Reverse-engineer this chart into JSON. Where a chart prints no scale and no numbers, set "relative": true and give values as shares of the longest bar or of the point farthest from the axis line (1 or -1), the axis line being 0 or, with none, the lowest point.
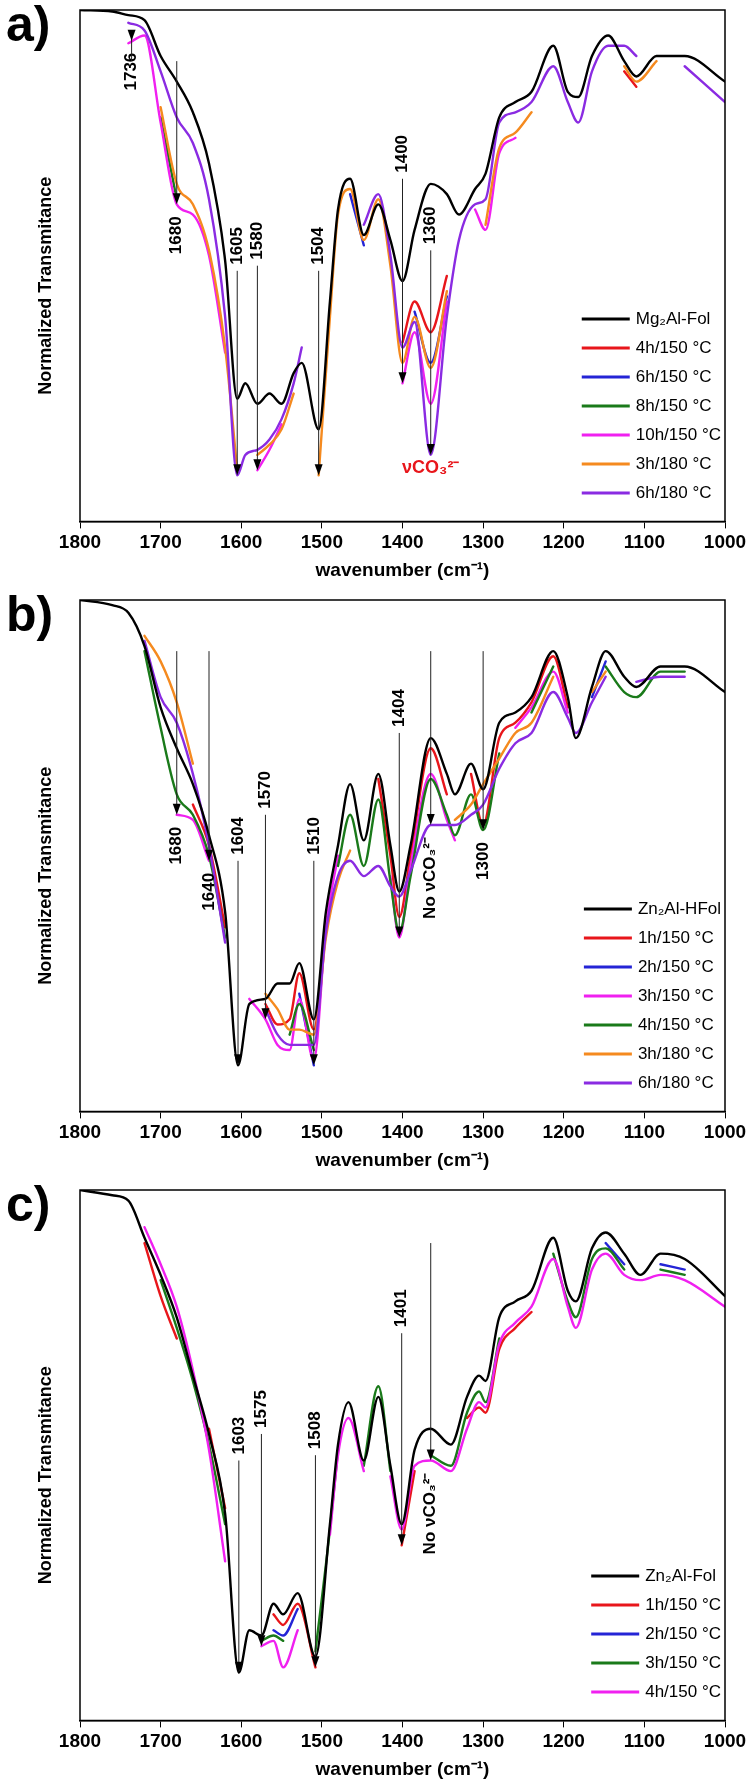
{
  "chart_data": [
    {
      "type": "line",
      "title": "a)",
      "xlabel": "wavenumber (cm⁻¹)",
      "ylabel": "Normalized Transmitance",
      "relative": true,
      "legend": "bottom right",
      "line_style": "solid",
      "xlim": [
        1800,
        1000
      ],
      "xticks": [
        1800,
        1700,
        1600,
        1500,
        1400,
        1300,
        1200,
        1100,
        1000
      ],
      "x": [
        1800,
        1760,
        1740,
        1720,
        1700,
        1680,
        1660,
        1640,
        1620,
        1605,
        1595,
        1580,
        1565,
        1550,
        1535,
        1525,
        1504,
        1490,
        1480,
        1465,
        1448,
        1430,
        1415,
        1400,
        1385,
        1365,
        1345,
        1330,
        1310,
        1297,
        1280,
        1260,
        1240,
        1213,
        1195,
        1182,
        1165,
        1145,
        1125,
        1110,
        1085,
        1050,
        1000
      ],
      "series": [
        {
          "name": "Mg₂Al-Fol",
          "color": "#000000",
          "values": [
            1.0,
            0.997,
            0.99,
            0.98,
            0.91,
            0.86,
            0.8,
            0.7,
            0.51,
            0.24,
            0.27,
            0.23,
            0.25,
            0.23,
            0.29,
            0.31,
            0.18,
            0.43,
            0.61,
            0.67,
            0.56,
            0.62,
            0.55,
            0.47,
            0.57,
            0.66,
            0.64,
            0.6,
            0.65,
            0.68,
            0.79,
            0.82,
            0.84,
            0.93,
            0.84,
            0.83,
            0.91,
            0.95,
            0.9,
            0.87,
            0.91,
            0.91,
            0.86
          ]
        },
        {
          "name": "4h/150 °C",
          "color": "#e8161b",
          "values": [
            null,
            null,
            null,
            null,
            null,
            null,
            null,
            null,
            null,
            null,
            null,
            null,
            null,
            null,
            null,
            null,
            null,
            null,
            null,
            null,
            null,
            null,
            null,
            0.35,
            0.43,
            0.37,
            0.48,
            null,
            null,
            null,
            null,
            null,
            null,
            null,
            null,
            null,
            null,
            null,
            0.88,
            0.85,
            null,
            null,
            null
          ]
        },
        {
          "name": "6h/150 °C",
          "color": "#2424d6",
          "values": [
            null,
            null,
            null,
            null,
            null,
            null,
            null,
            null,
            null,
            null,
            null,
            null,
            null,
            null,
            null,
            null,
            null,
            null,
            null,
            0.64,
            0.54,
            null,
            null,
            null,
            0.41,
            0.31,
            0.44,
            null,
            null,
            null,
            null,
            null,
            null,
            null,
            null,
            null,
            null,
            null,
            null,
            null,
            null,
            null,
            null
          ]
        },
        {
          "name": "8h/150 °C",
          "color": "#1a7a1a",
          "values": [
            null,
            null,
            null,
            null,
            0.79,
            0.63,
            null,
            null,
            null,
            null,
            null,
            null,
            null,
            null,
            null,
            null,
            null,
            null,
            null,
            null,
            null,
            null,
            null,
            null,
            null,
            null,
            null,
            null,
            null,
            null,
            null,
            null,
            null,
            null,
            null,
            null,
            null,
            null,
            null,
            null,
            null,
            null,
            null
          ]
        },
        {
          "name": "10h/150 °C",
          "color": "#f020f0",
          "values": [
            null,
            null,
            0.935,
            0.95,
            0.78,
            0.62,
            0.6,
            0.52,
            0.33,
            null,
            null,
            0.1,
            0.14,
            0.19,
            null,
            null,
            null,
            null,
            null,
            null,
            null,
            null,
            null,
            0.27,
            0.37,
            0.23,
            0.43,
            null,
            0.61,
            0.57,
            0.72,
            0.75,
            null,
            null,
            null,
            null,
            null,
            null,
            null,
            null,
            null,
            null,
            null
          ]
        },
        {
          "name": "3h/180 °C",
          "color": "#f58a1f",
          "values": [
            null,
            null,
            null,
            null,
            0.81,
            0.66,
            0.62,
            0.53,
            0.34,
            0.1,
            null,
            0.13,
            0.15,
            0.18,
            0.25,
            null,
            0.09,
            0.4,
            0.6,
            0.65,
            0.55,
            0.63,
            0.5,
            0.31,
            0.4,
            0.3,
            0.45,
            null,
            null,
            0.58,
            0.73,
            0.76,
            0.8,
            null,
            null,
            null,
            null,
            null,
            0.89,
            0.86,
            0.9,
            null,
            null
          ]
        },
        {
          "name": "6h/180 °C",
          "color": "#8a2be2",
          "values": [
            null,
            null,
            0.975,
            0.96,
            0.88,
            0.79,
            0.74,
            0.63,
            0.4,
            0.09,
            0.13,
            0.14,
            0.16,
            0.2,
            0.27,
            0.34,
            null,
            null,
            null,
            null,
            0.58,
            0.64,
            0.52,
            0.34,
            0.39,
            0.13,
            0.4,
            0.55,
            0.62,
            0.63,
            0.78,
            0.8,
            0.82,
            0.89,
            0.82,
            0.78,
            0.88,
            0.93,
            0.93,
            0.91,
            null,
            0.89,
            0.82
          ]
        }
      ],
      "annotations": [
        {
          "text": "1736",
          "x": 1736,
          "y": 0.94
        },
        {
          "text": "1680",
          "x": 1680,
          "y": 0.62
        },
        {
          "text": "1605",
          "x": 1605,
          "y": 0.09
        },
        {
          "text": "1580",
          "x": 1580,
          "y": 0.1
        },
        {
          "text": "1504",
          "x": 1504,
          "y": 0.09
        },
        {
          "text": "1400",
          "x": 1400,
          "y": 0.27
        },
        {
          "text": "1360",
          "x": 1365,
          "y": 0.13
        },
        "νCO₃²⁻"
      ]
    },
    {
      "type": "line",
      "title": "b)",
      "xlabel": "wavenumber (cm⁻¹)",
      "ylabel": "Normalized Transmitance",
      "relative": true,
      "legend": "bottom right",
      "line_style": "solid",
      "xlim": [
        1800,
        1000
      ],
      "xticks": [
        1800,
        1700,
        1600,
        1500,
        1400,
        1300,
        1200,
        1100,
        1000
      ],
      "x": [
        1800,
        1760,
        1740,
        1720,
        1700,
        1680,
        1660,
        1640,
        1620,
        1604,
        1590,
        1570,
        1555,
        1540,
        1528,
        1510,
        1495,
        1480,
        1465,
        1448,
        1430,
        1415,
        1404,
        1390,
        1365,
        1345,
        1335,
        1315,
        1300,
        1280,
        1260,
        1240,
        1213,
        1195,
        1185,
        1165,
        1148,
        1125,
        1110,
        1080,
        1050,
        1000
      ],
      "series": [
        {
          "name": "Zn₂Al-HFol",
          "color": "#000000",
          "values": [
            1.0,
            0.99,
            0.975,
            0.91,
            0.79,
            0.71,
            0.64,
            0.54,
            0.39,
            0.09,
            0.21,
            0.22,
            0.25,
            0.25,
            0.29,
            0.18,
            0.39,
            0.52,
            0.64,
            0.53,
            0.66,
            0.52,
            0.43,
            0.52,
            0.73,
            0.66,
            0.62,
            0.68,
            0.63,
            0.76,
            0.78,
            0.81,
            0.9,
            0.81,
            0.73,
            0.83,
            0.9,
            0.85,
            0.83,
            0.87,
            0.87,
            0.82
          ]
        },
        {
          "name": "1h/150 °C",
          "color": "#e8161b",
          "values": [
            null,
            null,
            null,
            null,
            null,
            null,
            0.6,
            0.52,
            0.36,
            null,
            null,
            0.21,
            0.17,
            0.18,
            0.27,
            0.16,
            0.38,
            null,
            null,
            null,
            0.65,
            0.5,
            0.38,
            0.5,
            0.71,
            0.62,
            null,
            0.66,
            0.56,
            0.73,
            0.76,
            0.8,
            0.89,
            0.79,
            null,
            null,
            null,
            null,
            null,
            null,
            null,
            null
          ]
        },
        {
          "name": "2h/150 °C",
          "color": "#2424d6",
          "values": [
            null,
            null,
            null,
            null,
            null,
            null,
            null,
            null,
            null,
            null,
            null,
            null,
            null,
            null,
            0.23,
            0.09,
            null,
            null,
            null,
            null,
            null,
            null,
            null,
            null,
            null,
            null,
            null,
            null,
            null,
            null,
            null,
            null,
            null,
            null,
            null,
            0.81,
            0.88,
            null,
            null,
            null,
            null,
            null
          ]
        },
        {
          "name": "3h/150 °C",
          "color": "#f020f0",
          "values": [
            null,
            null,
            null,
            null,
            null,
            0.58,
            0.57,
            0.49,
            null,
            null,
            0.22,
            0.18,
            0.13,
            0.12,
            0.22,
            0.1,
            0.36,
            0.5,
            null,
            null,
            null,
            0.46,
            0.34,
            0.48,
            0.66,
            0.57,
            0.53,
            null,
            null,
            null,
            0.75,
            0.79,
            0.86,
            0.78,
            null,
            null,
            null,
            null,
            null,
            null,
            null,
            null
          ]
        },
        {
          "name": "4h/150 °C",
          "color": "#1a7a1a",
          "values": [
            null,
            null,
            null,
            0.9,
            0.75,
            0.62,
            0.58,
            0.5,
            0.34,
            null,
            null,
            null,
            null,
            0.15,
            0.21,
            0.12,
            null,
            0.48,
            0.58,
            0.48,
            0.61,
            0.45,
            0.35,
            0.46,
            0.65,
            0.58,
            0.54,
            0.62,
            0.55,
            0.7,
            null,
            0.78,
            0.87,
            null,
            null,
            null,
            0.87,
            0.82,
            0.81,
            0.86,
            0.86,
            null
          ]
        },
        {
          "name": "3h/180 °C",
          "color": "#f58a1f",
          "values": [
            null,
            null,
            null,
            0.93,
            0.88,
            0.8,
            0.68,
            null,
            null,
            null,
            null,
            0.23,
            0.2,
            0.16,
            0.16,
            0.15,
            0.34,
            0.45,
            0.51,
            null,
            null,
            null,
            null,
            null,
            null,
            null,
            0.57,
            0.6,
            0.64,
            0.69,
            0.74,
            0.76,
            0.85,
            null,
            null,
            0.82,
            0.86,
            null,
            null,
            null,
            null,
            null
          ]
        },
        {
          "name": "6h/180 °C",
          "color": "#8a2be2",
          "values": [
            null,
            null,
            null,
            0.92,
            0.81,
            0.76,
            0.66,
            0.52,
            0.33,
            null,
            null,
            0.2,
            0.15,
            0.13,
            0.13,
            0.13,
            0.35,
            0.46,
            0.49,
            0.46,
            0.48,
            0.44,
            0.42,
            0.47,
            0.56,
            0.56,
            0.56,
            0.58,
            0.6,
            0.67,
            0.72,
            0.74,
            0.82,
            0.77,
            0.74,
            0.8,
            0.85,
            null,
            0.84,
            0.85,
            0.85,
            null
          ]
        }
      ],
      "annotations": [
        {
          "text": "1680",
          "x": 1680,
          "y": 0.58
        },
        {
          "text": "1640",
          "x": 1640,
          "y": 0.49
        },
        {
          "text": "1604",
          "x": 1604,
          "y": 0.09
        },
        {
          "text": "1570",
          "x": 1570,
          "y": 0.18
        },
        {
          "text": "1510",
          "x": 1510,
          "y": 0.09
        },
        {
          "text": "1404",
          "x": 1404,
          "y": 0.34
        },
        {
          "text": "1300",
          "x": 1300,
          "y": 0.55
        },
        {
          "text": "No νCO₃²⁻",
          "x": 1365,
          "y": 0.56
        }
      ]
    },
    {
      "type": "line",
      "title": "c)",
      "xlabel": "wavenumber (cm⁻¹)",
      "ylabel": "Normalized Transmitance",
      "relative": true,
      "legend": "bottom right",
      "line_style": "solid",
      "xlim": [
        1800,
        1000
      ],
      "xticks": [
        1800,
        1700,
        1600,
        1500,
        1400,
        1300,
        1200,
        1100,
        1000
      ],
      "x": [
        1800,
        1760,
        1740,
        1720,
        1700,
        1680,
        1660,
        1640,
        1620,
        1603,
        1590,
        1575,
        1560,
        1548,
        1530,
        1508,
        1490,
        1480,
        1467,
        1448,
        1430,
        1415,
        1401,
        1385,
        1365,
        1340,
        1320,
        1305,
        1297,
        1280,
        1260,
        1240,
        1213,
        1195,
        1185,
        1165,
        1148,
        1125,
        1105,
        1080,
        1050,
        1000
      ],
      "series": [
        {
          "name": "Zn₂Al-Fol",
          "color": "#000000",
          "values": [
            1.0,
            0.99,
            0.98,
            0.91,
            0.84,
            0.76,
            0.65,
            0.54,
            0.39,
            0.09,
            0.17,
            0.16,
            0.22,
            0.2,
            0.24,
            0.12,
            0.37,
            0.52,
            0.6,
            0.49,
            0.61,
            0.48,
            0.37,
            0.51,
            0.55,
            0.52,
            0.61,
            0.65,
            0.64,
            0.76,
            0.79,
            0.81,
            0.91,
            0.81,
            0.79,
            0.89,
            0.92,
            0.88,
            0.84,
            0.88,
            0.87,
            0.8
          ]
        },
        {
          "name": "1h/150 °C",
          "color": "#e8161b",
          "values": [
            null,
            null,
            null,
            0.9,
            0.8,
            0.72,
            null,
            0.55,
            0.4,
            null,
            null,
            null,
            0.2,
            0.18,
            0.22,
            0.1,
            null,
            null,
            null,
            null,
            null,
            null,
            0.33,
            0.47,
            null,
            null,
            0.57,
            0.59,
            0.58,
            0.7,
            0.74,
            0.77,
            null,
            null,
            null,
            null,
            null,
            null,
            null,
            null,
            null,
            null
          ]
        },
        {
          "name": "2h/150 °C",
          "color": "#2424d6",
          "values": [
            null,
            null,
            null,
            null,
            null,
            null,
            null,
            null,
            null,
            null,
            null,
            null,
            0.17,
            0.16,
            0.21,
            null,
            null,
            null,
            null,
            null,
            null,
            null,
            null,
            null,
            null,
            null,
            null,
            null,
            null,
            null,
            null,
            null,
            null,
            null,
            null,
            null,
            0.9,
            0.86,
            null,
            0.86,
            0.85,
            null
          ]
        },
        {
          "name": "3h/150 °C",
          "color": "#1a7a1a",
          "values": [
            null,
            null,
            null,
            null,
            0.83,
            0.74,
            0.64,
            0.52,
            0.37,
            null,
            null,
            0.15,
            0.16,
            0.15,
            null,
            0.13,
            0.36,
            0.51,
            null,
            0.48,
            0.63,
            0.47,
            null,
            null,
            0.5,
            0.48,
            0.58,
            0.62,
            0.6,
            0.72,
            null,
            null,
            0.88,
            0.79,
            0.76,
            0.87,
            0.89,
            0.85,
            null,
            0.85,
            0.84,
            null
          ]
        },
        {
          "name": "4h/150 °C",
          "color": "#f020f0",
          "values": [
            null,
            null,
            null,
            0.93,
            0.86,
            0.78,
            0.66,
            0.51,
            0.3,
            null,
            null,
            0.14,
            0.15,
            0.1,
            0.17,
            null,
            0.35,
            0.5,
            0.57,
            0.47,
            null,
            0.46,
            0.36,
            0.48,
            0.49,
            0.47,
            0.55,
            0.6,
            0.59,
            0.71,
            0.75,
            0.78,
            0.87,
            0.78,
            0.74,
            0.85,
            0.88,
            0.84,
            0.83,
            0.84,
            0.83,
            0.78
          ]
        }
      ],
      "annotations": [
        {
          "text": "1603",
          "x": 1603,
          "y": 0.09
        },
        {
          "text": "1575",
          "x": 1575,
          "y": 0.14
        },
        {
          "text": "1508",
          "x": 1508,
          "y": 0.1
        },
        {
          "text": "1401",
          "x": 1401,
          "y": 0.33
        },
        {
          "text": "No νCO₃²⁻",
          "x": 1365,
          "y": 0.49
        }
      ]
    }
  ]
}
